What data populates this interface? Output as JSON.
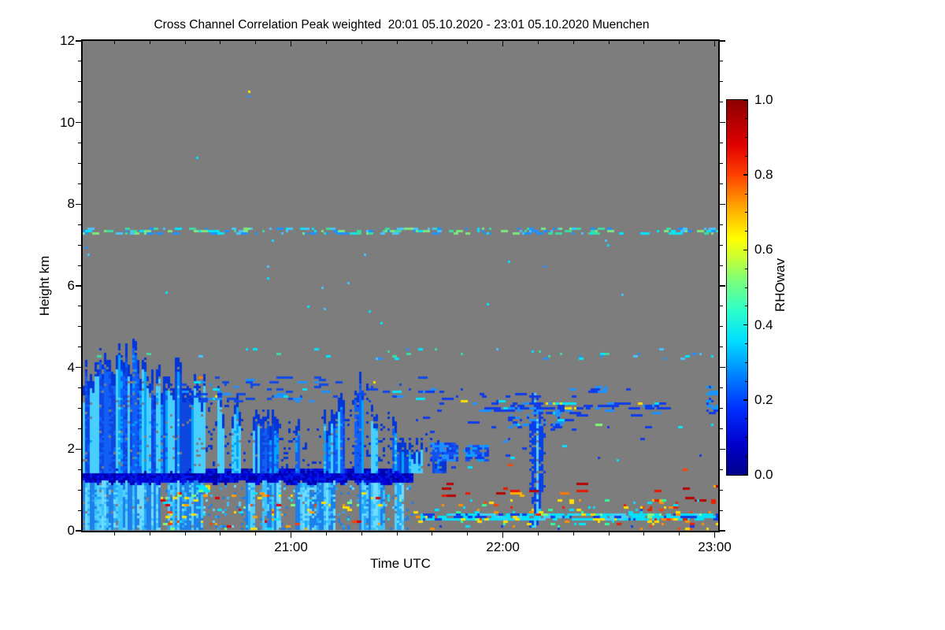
{
  "page": {
    "background": "#ffffff"
  },
  "chart_data": {
    "type": "heatmap",
    "title": "Cross Channel Correlation Peak weighted  20:01 05.10.2020 - 23:01 05.10.2020 Muenchen",
    "station": "Muenchen",
    "date": "05.10.2020",
    "time_range": [
      "20:01",
      "23:01"
    ],
    "xlabel": "Time UTC",
    "ylabel": "Height km",
    "x_range_minutes": [
      0,
      180
    ],
    "x_ticks": [
      {
        "minute": 59,
        "label": "21:00"
      },
      {
        "minute": 119,
        "label": "22:00"
      },
      {
        "minute": 179,
        "label": "23:00"
      }
    ],
    "x_minor_step_min": 10,
    "ylim": [
      0,
      12
    ],
    "y_ticks": [
      0,
      2,
      4,
      6,
      8,
      10,
      12
    ],
    "y_minor_step": 0.5,
    "grid": false,
    "legend_position": "right-colorbar",
    "no_data_color": "#7d7d7d",
    "colorbar": {
      "label": "RHOwav",
      "tick_labels": [
        "1.0",
        "0.8",
        "0.6",
        "0.4",
        "0.2",
        "0.0"
      ],
      "tick_values": [
        1.0,
        0.8,
        0.6,
        0.4,
        0.2,
        0.0
      ],
      "minor_step": 0.05,
      "range": [
        0.0,
        1.0
      ],
      "gradient": [
        [
          0.0,
          "#00008a"
        ],
        [
          0.08,
          "#0000cd"
        ],
        [
          0.18,
          "#0030ff"
        ],
        [
          0.28,
          "#0090ff"
        ],
        [
          0.36,
          "#00e0ff"
        ],
        [
          0.44,
          "#2effc8"
        ],
        [
          0.52,
          "#7dff7a"
        ],
        [
          0.58,
          "#c8ff32"
        ],
        [
          0.63,
          "#ffff00"
        ],
        [
          0.72,
          "#ffa000"
        ],
        [
          0.8,
          "#ff4000"
        ],
        [
          0.88,
          "#e00000"
        ],
        [
          1.0,
          "#8b0000"
        ]
      ]
    },
    "features": [
      {
        "type": "columns",
        "name": "mixed-layer",
        "t": [
          0,
          93.5
        ],
        "z": [
          0.07,
          1.26
        ],
        "gap_start_min": 22,
        "colors": [
          "#38c0ff",
          "#55d0ff",
          "#22a8ff",
          "#6fdcff"
        ],
        "dark_streak": "#1e7fe8"
      },
      {
        "type": "band",
        "name": "dark-band-1p4km",
        "t": [
          0,
          93.5
        ],
        "z": [
          1.27,
          1.5
        ],
        "colors": [
          "#0000a8",
          "#0000d8",
          "#0018e8"
        ]
      },
      {
        "type": "plume_field",
        "name": "convective-plumes",
        "t": [
          0,
          103
        ],
        "z_base": 1.42,
        "gap_after_min": 35,
        "top_profile": [
          [
            0,
            3.85
          ],
          [
            6,
            4.0
          ],
          [
            12,
            4.4
          ],
          [
            18,
            3.75
          ],
          [
            26,
            3.65
          ],
          [
            34,
            3.45
          ],
          [
            42,
            2.95
          ],
          [
            50,
            2.55
          ],
          [
            58,
            2.45
          ],
          [
            66,
            2.6
          ],
          [
            72,
            2.8
          ],
          [
            79,
            3.5
          ],
          [
            83,
            3.1
          ],
          [
            88,
            2.4
          ],
          [
            93,
            2.1
          ],
          [
            98,
            2.2
          ],
          [
            103,
            1.7
          ]
        ],
        "colors_core": [
          "#49cfff",
          "#00a4ff",
          "#1060f8",
          "#0d47e0"
        ],
        "color_edge": "#0336d8"
      },
      {
        "type": "vplume",
        "name": "plume-2208",
        "t": [
          126.3,
          130.8
        ],
        "z": [
          0.12,
          3.35
        ],
        "color_core": "#55cfff",
        "color_edge": "#0540e8"
      },
      {
        "type": "patch",
        "name": "dotted-line-7km",
        "t": [
          0,
          180
        ],
        "z": [
          7.3,
          7.4
        ],
        "density": 0.22,
        "run": [
          1,
          3
        ],
        "colors": [
          "#00e5ff",
          "#3cdba0",
          "#49c3ff",
          "#1e90ff",
          "#7fe57f"
        ]
      },
      {
        "type": "patch",
        "name": "speckle-row-4p4km",
        "t": [
          0,
          180
        ],
        "z": [
          4.22,
          4.42
        ],
        "density": 0.03,
        "run": [
          1,
          2
        ],
        "colors": [
          "#00e5ff",
          "#49c3ff",
          "#1e90ff",
          "#3cdba0"
        ]
      },
      {
        "type": "patch",
        "name": "sparse-high",
        "t": [
          0,
          180
        ],
        "z": [
          4.6,
          7.2
        ],
        "density": 0.002,
        "run": [
          1,
          1
        ],
        "colors": [
          "#49c3ff",
          "#1e90ff",
          "#00e5ff"
        ]
      },
      {
        "type": "patch",
        "name": "sparse-very-high",
        "t": [
          0,
          180
        ],
        "z": [
          7.5,
          11.2
        ],
        "density": 0.0002,
        "run": [
          1,
          1
        ],
        "colors": [
          "#49c3ff",
          "#00e5ff"
        ]
      },
      {
        "type": "patch",
        "name": "speckles-above-plumes",
        "t": [
          28,
          100
        ],
        "z": [
          3.2,
          3.75
        ],
        "density": 0.07,
        "run": [
          1,
          4
        ],
        "colors": [
          [
            "#0f4ae8",
            8
          ],
          [
            "#1e90ff",
            3
          ],
          [
            "#00e5ff",
            1
          ],
          [
            "#ffe000",
            0.4
          ],
          [
            "#ff8000",
            0.25
          ]
        ]
      },
      {
        "type": "patch",
        "name": "mid-level-dashes",
        "t": [
          95,
          168
        ],
        "z": [
          2.55,
          3.45
        ],
        "density": 0.02,
        "run": [
          1,
          5
        ],
        "colors": [
          [
            "#0f3ce8",
            8
          ],
          [
            "#1e90ff",
            2
          ],
          [
            "#00e5ff",
            1
          ],
          [
            "#ffe000",
            0.3
          ],
          [
            "#7dff7a",
            0.3
          ]
        ]
      },
      {
        "type": "patch",
        "name": "dash-row-3km",
        "t": [
          114,
          163
        ],
        "z": [
          3.0,
          3.14
        ],
        "density": 0.18,
        "run": [
          2,
          6
        ],
        "colors": [
          [
            "#0f3ce8",
            6
          ],
          [
            "#1e90ff",
            2
          ],
          [
            "#00e5ff",
            1
          ],
          [
            "#ffe000",
            0.5
          ]
        ]
      },
      {
        "type": "patch",
        "name": "dash-row-2p9km",
        "t": [
          115,
          150
        ],
        "z": [
          2.86,
          2.98
        ],
        "density": 0.12,
        "run": [
          2,
          5
        ],
        "colors": [
          [
            "#0f3ce8",
            5
          ],
          [
            "#1e90ff",
            2
          ],
          [
            "#00e5ff",
            1
          ]
        ]
      },
      {
        "type": "patch",
        "name": "dash-row-3p4km",
        "t": [
          138,
          148
        ],
        "z": [
          3.38,
          3.5
        ],
        "density": 0.25,
        "run": [
          2,
          4
        ],
        "colors": [
          "#0f3ce8",
          "#1e90ff"
        ]
      },
      {
        "type": "patch",
        "name": "speckles-1p5-2p8",
        "t": [
          95,
          180
        ],
        "z": [
          1.3,
          2.6
        ],
        "density": 0.012,
        "run": [
          1,
          2
        ],
        "colors": [
          [
            "#0f3ce8",
            6
          ],
          [
            "#1e90ff",
            2
          ],
          [
            "#00e5ff",
            1
          ],
          [
            "#ff4000",
            0.3
          ]
        ]
      },
      {
        "type": "patch",
        "name": "blob-2km-a",
        "t": [
          99,
          106
        ],
        "z": [
          1.7,
          2.15
        ],
        "density": 0.5,
        "run": [
          2,
          4
        ],
        "colors": [
          "#0f3ce8",
          "#1550f0",
          "#1e90ff"
        ]
      },
      {
        "type": "patch",
        "name": "blob-2km-b",
        "t": [
          108,
          114.5
        ],
        "z": [
          1.75,
          2.1
        ],
        "density": 0.55,
        "run": [
          2,
          4
        ],
        "colors": [
          "#0f3ce8",
          "#1550f0",
          "#1e90ff",
          "#00a4ff"
        ]
      },
      {
        "type": "patch",
        "name": "blob-plume-flank",
        "t": [
          121,
          135
        ],
        "z": [
          2.5,
          3.1
        ],
        "density": 0.14,
        "run": [
          1,
          3
        ],
        "colors": [
          "#0f3ce8",
          "#1e90ff"
        ]
      },
      {
        "type": "patch",
        "name": "cyan-band-0p3km",
        "t": [
          94,
          180
        ],
        "z": [
          0.26,
          0.42
        ],
        "density": 0.35,
        "run": [
          2,
          6
        ],
        "colors": [
          [
            "#00e0ff",
            6
          ],
          [
            "#40d0ff",
            2
          ],
          [
            "#0f3ce8",
            1.5
          ],
          [
            "#7dff7a",
            0.4
          ],
          [
            "#ffe000",
            0.3
          ]
        ]
      },
      {
        "type": "patch",
        "name": "red-dashes-1km",
        "t": [
          100,
          180
        ],
        "z": [
          0.75,
          1.15
        ],
        "density": 0.05,
        "run": [
          2,
          5
        ],
        "cluster": {
          "scale": 0.18,
          "thresh": 0.62
        },
        "colors": [
          [
            "#b80000",
            4
          ],
          [
            "#e81800",
            3
          ],
          [
            "#ff7800",
            2
          ],
          [
            "#ffb000",
            1
          ]
        ]
      },
      {
        "type": "patch",
        "name": "bottom-speckles-right",
        "t": [
          94,
          180
        ],
        "z": [
          0.02,
          0.72
        ],
        "density": 0.08,
        "run": [
          1,
          2
        ],
        "colors": [
          [
            "#ffe000",
            3
          ],
          [
            "#ff9000",
            2
          ],
          [
            "#e82000",
            2
          ],
          [
            "#00e5ff",
            3
          ],
          [
            "#2eff9a",
            1.5
          ],
          [
            "#0f3ce8",
            2
          ],
          [
            "#ff4000",
            1
          ]
        ]
      },
      {
        "type": "patch",
        "name": "bottom-speckles-left",
        "t": [
          21,
          90
        ],
        "z": [
          0.02,
          0.92
        ],
        "density": 0.09,
        "run": [
          1,
          2
        ],
        "cluster": {
          "scale": 0.35,
          "thresh": 0.5
        },
        "colors": [
          [
            "#ffe000",
            3
          ],
          [
            "#ffa000",
            2
          ],
          [
            "#ff4000",
            1.5
          ],
          [
            "#e00000",
            1
          ],
          [
            "#00e5ff",
            1.5
          ],
          [
            "#7dff7a",
            1
          ]
        ]
      },
      {
        "type": "patch",
        "name": "green-line-1km",
        "t": [
          31,
          36
        ],
        "z": [
          0.98,
          1.08
        ],
        "density": 0.6,
        "run": [
          2,
          4
        ],
        "colors": [
          "#7dff7a",
          "#00e5ff",
          "#ffe000"
        ]
      },
      {
        "type": "patch",
        "name": "right-edge-blue",
        "t": [
          177,
          180
        ],
        "z": [
          2.8,
          3.5
        ],
        "density": 0.4,
        "run": [
          1,
          2
        ],
        "colors": [
          "#0f3ce8",
          "#1e90ff",
          "#00a4ff"
        ]
      },
      {
        "type": "pixels",
        "name": "lone-pixel-10p7km",
        "cells": [
          {
            "t": 47,
            "z": 10.78,
            "color": "#ffe000"
          },
          {
            "t": 47,
            "z": 10.62,
            "color": "#1e90ff"
          }
        ]
      }
    ]
  }
}
